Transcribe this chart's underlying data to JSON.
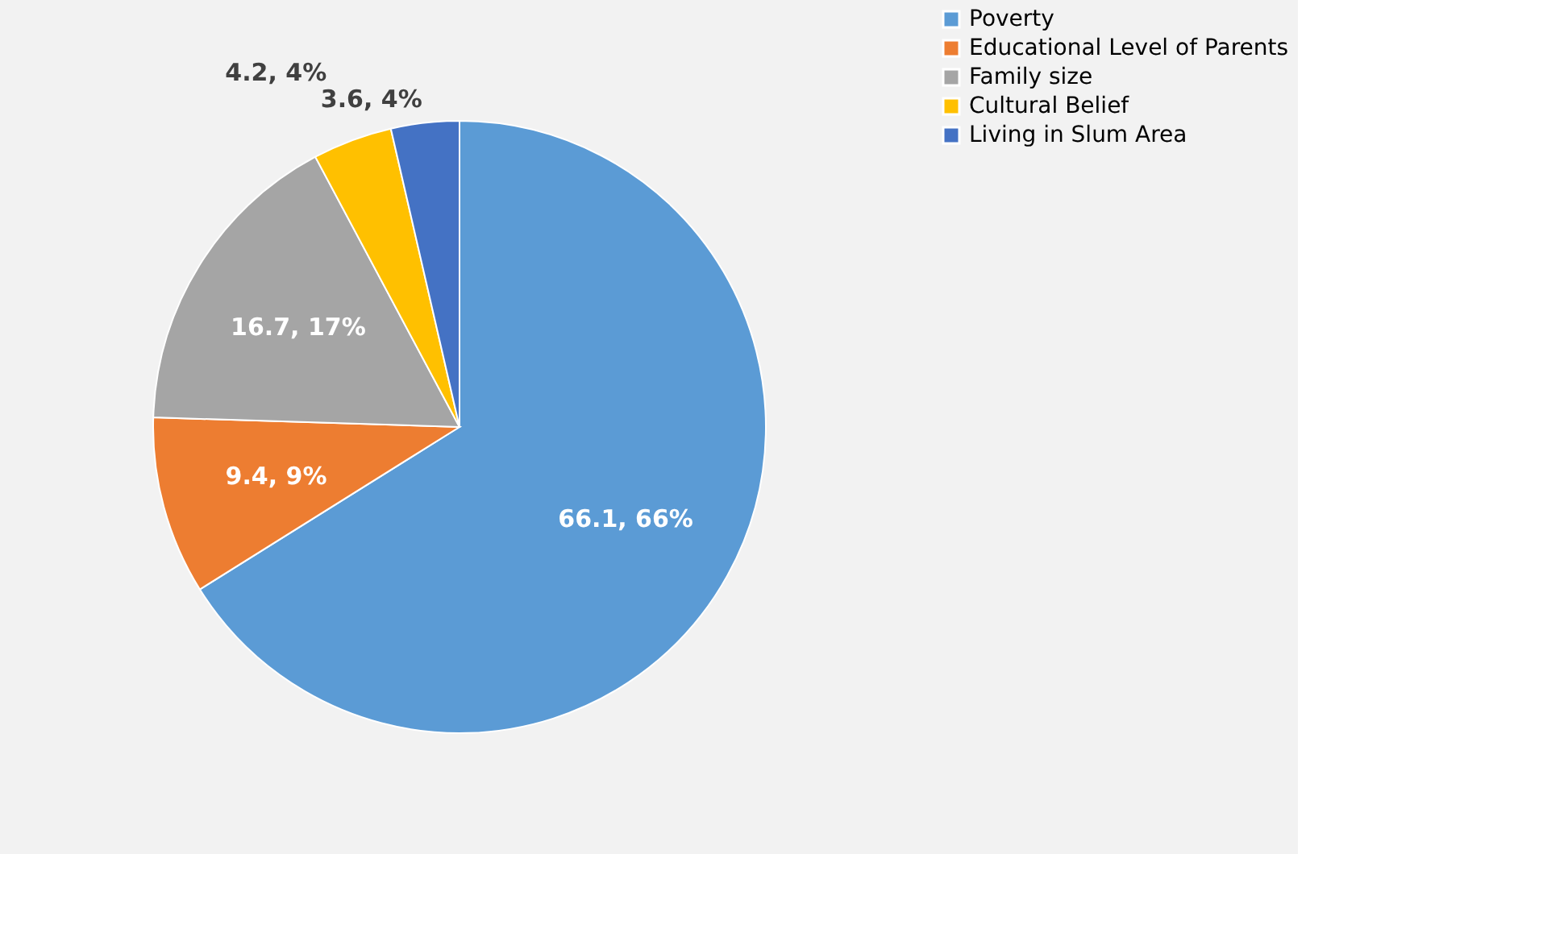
{
  "chart_data": {
    "type": "pie",
    "categories": [
      "Poverty",
      "Educational Level of Parents",
      "Family size",
      "Cultural Belief",
      "Living in Slum Area"
    ],
    "values": [
      66.1,
      9.4,
      16.7,
      4.2,
      3.6
    ],
    "colors": [
      "#5b9bd5",
      "#ed7d31",
      "#a5a5a5",
      "#ffc000",
      "#4472c4"
    ],
    "value_labels": [
      "66.1, 66%",
      "9.4, 9%",
      "16.7, 17%",
      "4.2, 4%",
      "3.6, 4%"
    ],
    "legend": "right"
  }
}
